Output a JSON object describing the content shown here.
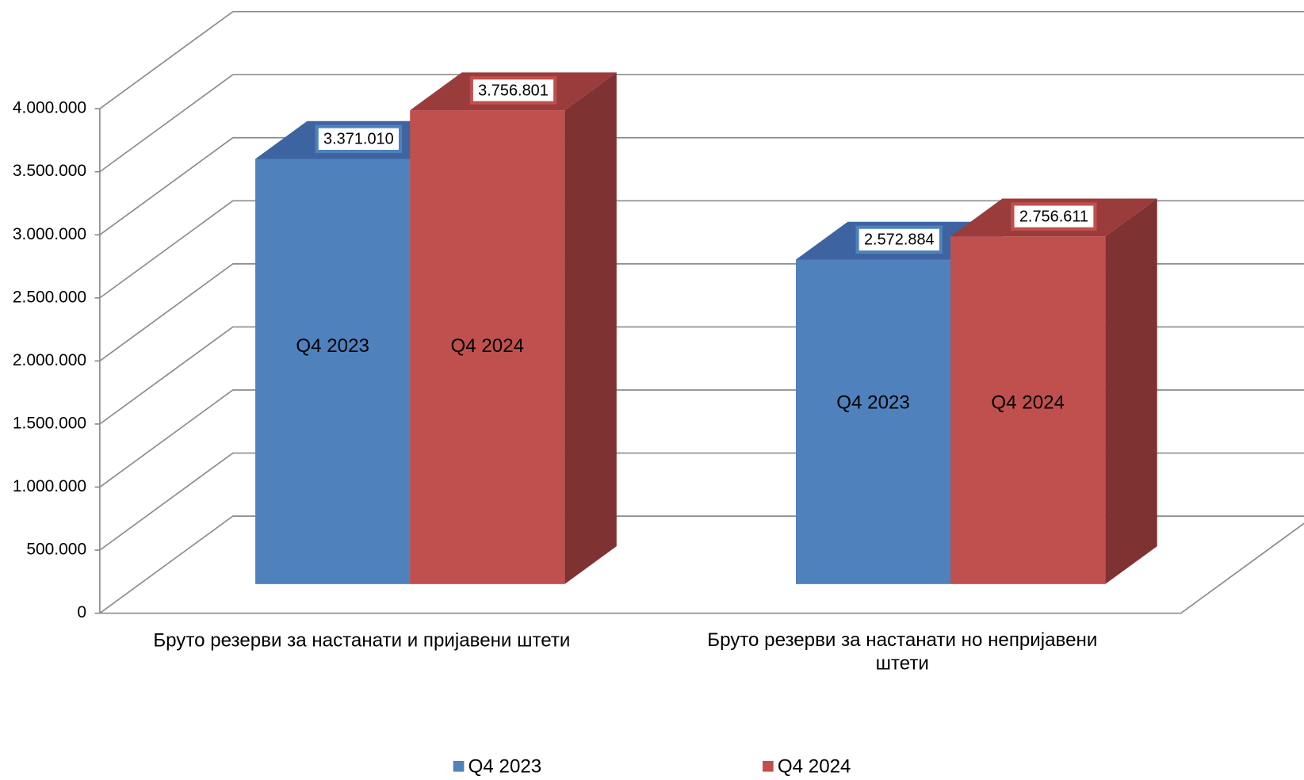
{
  "chart_data": {
    "type": "bar3d",
    "categories": [
      "Бруто резерви за настанати и пријавени штети",
      "Бруто резерви за настанати но непријавени штети"
    ],
    "series": [
      {
        "name": "Q4 2023",
        "color": "#4f81bd",
        "top_color": "#3d64a0",
        "side_color": "#39608f",
        "values": [
          3371010,
          2572884
        ],
        "value_labels": [
          "3.371.010",
          "2.572.884"
        ]
      },
      {
        "name": "Q4 2024",
        "color": "#c0504d",
        "top_color": "#9a3c3b",
        "side_color": "#7f3232",
        "values": [
          3756801,
          2756611
        ],
        "value_labels": [
          "3.756.801",
          "2.756.611"
        ]
      }
    ],
    "ylim": [
      0,
      4000000
    ],
    "yticks": [
      {
        "value": 0,
        "label": "0"
      },
      {
        "value": 500000,
        "label": "500.000"
      },
      {
        "value": 1000000,
        "label": "1.000.000"
      },
      {
        "value": 1500000,
        "label": "1.500.000"
      },
      {
        "value": 2000000,
        "label": "2.000.000"
      },
      {
        "value": 2500000,
        "label": "2.500.000"
      },
      {
        "value": 3000000,
        "label": "3.000.000"
      },
      {
        "value": 3500000,
        "label": "3.500.000"
      },
      {
        "value": 4000000,
        "label": "4.000.000"
      }
    ],
    "grid": true
  }
}
